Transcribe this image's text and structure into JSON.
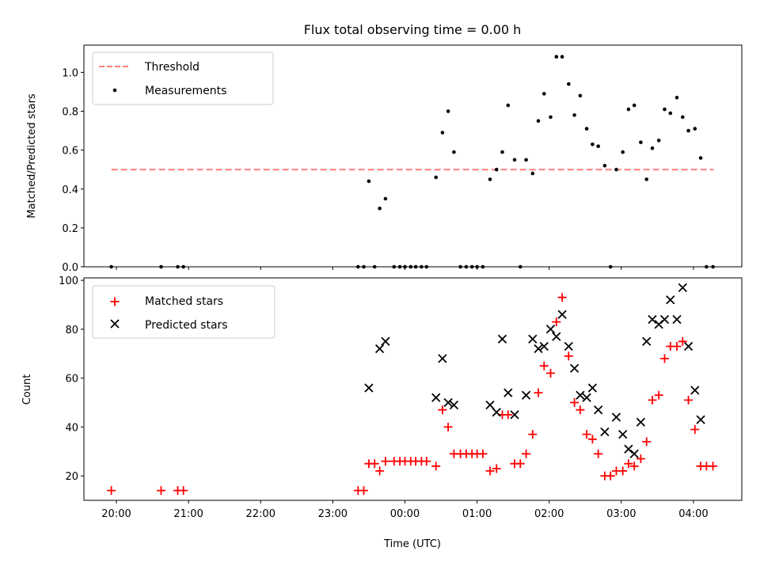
{
  "figure": {
    "title": "Flux total observing time = 0.00 h",
    "xlabel": "Time (UTC)",
    "xtick_labels": [
      "20:00",
      "21:00",
      "22:00",
      "23:00",
      "00:00",
      "01:00",
      "02:00",
      "03:00",
      "04:00"
    ],
    "xtick_hours": [
      20,
      21,
      22,
      23,
      24,
      25,
      26,
      27,
      28
    ]
  },
  "chart_data": [
    {
      "type": "scatter",
      "ylabel": "Matched/Predicted stars",
      "xlim_hours": [
        19.55,
        28.67
      ],
      "ylim": [
        0,
        1.14
      ],
      "ytick_values": [
        0.0,
        0.2,
        0.4,
        0.6,
        0.8,
        1.0
      ],
      "ytick_labels": [
        "0.0",
        "0.2",
        "0.4",
        "0.6",
        "0.8",
        "1.0"
      ],
      "legend": {
        "placement": "top-left",
        "entries": [
          "Threshold",
          "Measurements"
        ]
      },
      "threshold": {
        "name": "Threshold",
        "value": 0.5,
        "x_range_hours": [
          19.93,
          28.28
        ],
        "color": "#ff7f7f"
      },
      "series": [
        {
          "name": "Measurements",
          "marker": "dot",
          "color": "#000000",
          "points_hours": [
            [
              19.93,
              0.0
            ],
            [
              20.62,
              0.0
            ],
            [
              20.85,
              0.0
            ],
            [
              20.93,
              0.0
            ],
            [
              23.35,
              0.0
            ],
            [
              23.43,
              0.0
            ],
            [
              23.5,
              0.44
            ],
            [
              23.58,
              0.0
            ],
            [
              23.65,
              0.3
            ],
            [
              23.73,
              0.35
            ],
            [
              23.85,
              0.0
            ],
            [
              23.93,
              0.0
            ],
            [
              24.0,
              0.0
            ],
            [
              24.08,
              0.0
            ],
            [
              24.15,
              0.0
            ],
            [
              24.23,
              0.0
            ],
            [
              24.3,
              0.0
            ],
            [
              24.43,
              0.46
            ],
            [
              24.52,
              0.69
            ],
            [
              24.6,
              0.8
            ],
            [
              24.68,
              0.59
            ],
            [
              24.77,
              0.0
            ],
            [
              24.85,
              0.0
            ],
            [
              24.93,
              0.0
            ],
            [
              25.0,
              0.0
            ],
            [
              25.08,
              0.0
            ],
            [
              25.18,
              0.45
            ],
            [
              25.27,
              0.5
            ],
            [
              25.35,
              0.59
            ],
            [
              25.43,
              0.83
            ],
            [
              25.52,
              0.55
            ],
            [
              25.6,
              0.0
            ],
            [
              25.68,
              0.55
            ],
            [
              25.77,
              0.48
            ],
            [
              25.85,
              0.75
            ],
            [
              25.93,
              0.89
            ],
            [
              26.02,
              0.77
            ],
            [
              26.1,
              1.08
            ],
            [
              26.18,
              1.08
            ],
            [
              26.27,
              0.94
            ],
            [
              26.35,
              0.78
            ],
            [
              26.43,
              0.88
            ],
            [
              26.52,
              0.71
            ],
            [
              26.6,
              0.63
            ],
            [
              26.68,
              0.62
            ],
            [
              26.77,
              0.52
            ],
            [
              26.85,
              0.0
            ],
            [
              26.93,
              0.5
            ],
            [
              27.02,
              0.59
            ],
            [
              27.1,
              0.81
            ],
            [
              27.18,
              0.83
            ],
            [
              27.27,
              0.64
            ],
            [
              27.35,
              0.45
            ],
            [
              27.43,
              0.61
            ],
            [
              27.52,
              0.65
            ],
            [
              27.6,
              0.81
            ],
            [
              27.68,
              0.79
            ],
            [
              27.77,
              0.87
            ],
            [
              27.85,
              0.77
            ],
            [
              27.93,
              0.7
            ],
            [
              28.02,
              0.71
            ],
            [
              28.1,
              0.56
            ],
            [
              28.18,
              0.0
            ],
            [
              28.27,
              0.0
            ]
          ]
        }
      ]
    },
    {
      "type": "scatter",
      "ylabel": "Count",
      "xlim_hours": [
        19.55,
        28.67
      ],
      "ylim": [
        10,
        101
      ],
      "ytick_values": [
        20,
        40,
        60,
        80,
        100
      ],
      "ytick_labels": [
        "20",
        "40",
        "60",
        "80",
        "100"
      ],
      "legend": {
        "placement": "top-left",
        "entries": [
          "Matched stars",
          "Predicted stars"
        ]
      },
      "series": [
        {
          "name": "Matched stars",
          "marker": "plus",
          "color": "#ff0000",
          "points_hours": [
            [
              19.93,
              14
            ],
            [
              20.62,
              14
            ],
            [
              20.85,
              14
            ],
            [
              20.93,
              14
            ],
            [
              23.35,
              14
            ],
            [
              23.43,
              14
            ],
            [
              23.5,
              25
            ],
            [
              23.58,
              25
            ],
            [
              23.65,
              22
            ],
            [
              23.73,
              26
            ],
            [
              23.85,
              26
            ],
            [
              23.93,
              26
            ],
            [
              24.0,
              26
            ],
            [
              24.08,
              26
            ],
            [
              24.15,
              26
            ],
            [
              24.23,
              26
            ],
            [
              24.3,
              26
            ],
            [
              24.43,
              24
            ],
            [
              24.52,
              47
            ],
            [
              24.6,
              40
            ],
            [
              24.68,
              29
            ],
            [
              24.77,
              29
            ],
            [
              24.85,
              29
            ],
            [
              24.93,
              29
            ],
            [
              25.0,
              29
            ],
            [
              25.08,
              29
            ],
            [
              25.18,
              22
            ],
            [
              25.27,
              23
            ],
            [
              25.35,
              45
            ],
            [
              25.43,
              45
            ],
            [
              25.52,
              25
            ],
            [
              25.6,
              25
            ],
            [
              25.68,
              29
            ],
            [
              25.77,
              37
            ],
            [
              25.85,
              54
            ],
            [
              25.93,
              65
            ],
            [
              26.02,
              62
            ],
            [
              26.1,
              83
            ],
            [
              26.18,
              93
            ],
            [
              26.27,
              69
            ],
            [
              26.35,
              50
            ],
            [
              26.43,
              47
            ],
            [
              26.52,
              37
            ],
            [
              26.6,
              35
            ],
            [
              26.68,
              29
            ],
            [
              26.77,
              20
            ],
            [
              26.85,
              20
            ],
            [
              26.93,
              22
            ],
            [
              27.02,
              22
            ],
            [
              27.1,
              25
            ],
            [
              27.18,
              24
            ],
            [
              27.27,
              27
            ],
            [
              27.35,
              34
            ],
            [
              27.43,
              51
            ],
            [
              27.52,
              53
            ],
            [
              27.6,
              68
            ],
            [
              27.68,
              73
            ],
            [
              27.77,
              73
            ],
            [
              27.85,
              75
            ],
            [
              27.93,
              51
            ],
            [
              28.02,
              39
            ],
            [
              28.1,
              24
            ],
            [
              28.18,
              24
            ],
            [
              28.27,
              24
            ]
          ]
        },
        {
          "name": "Predicted stars",
          "marker": "x",
          "color": "#000000",
          "points_hours": [
            [
              23.5,
              56
            ],
            [
              23.65,
              72
            ],
            [
              23.73,
              75
            ],
            [
              24.43,
              52
            ],
            [
              24.52,
              68
            ],
            [
              24.6,
              50
            ],
            [
              24.68,
              49
            ],
            [
              25.18,
              49
            ],
            [
              25.27,
              46
            ],
            [
              25.35,
              76
            ],
            [
              25.43,
              54
            ],
            [
              25.52,
              45
            ],
            [
              25.68,
              53
            ],
            [
              25.77,
              76
            ],
            [
              25.85,
              72
            ],
            [
              25.93,
              73
            ],
            [
              26.02,
              80
            ],
            [
              26.1,
              77
            ],
            [
              26.18,
              86
            ],
            [
              26.27,
              73
            ],
            [
              26.35,
              64
            ],
            [
              26.43,
              53
            ],
            [
              26.52,
              52
            ],
            [
              26.6,
              56
            ],
            [
              26.68,
              47
            ],
            [
              26.77,
              38
            ],
            [
              26.93,
              44
            ],
            [
              27.02,
              37
            ],
            [
              27.1,
              31
            ],
            [
              27.18,
              29
            ],
            [
              27.27,
              42
            ],
            [
              27.35,
              75
            ],
            [
              27.43,
              84
            ],
            [
              27.52,
              82
            ],
            [
              27.6,
              84
            ],
            [
              27.68,
              92
            ],
            [
              27.77,
              84
            ],
            [
              27.85,
              97
            ],
            [
              27.93,
              73
            ],
            [
              28.02,
              55
            ],
            [
              28.1,
              43
            ]
          ]
        }
      ]
    }
  ]
}
